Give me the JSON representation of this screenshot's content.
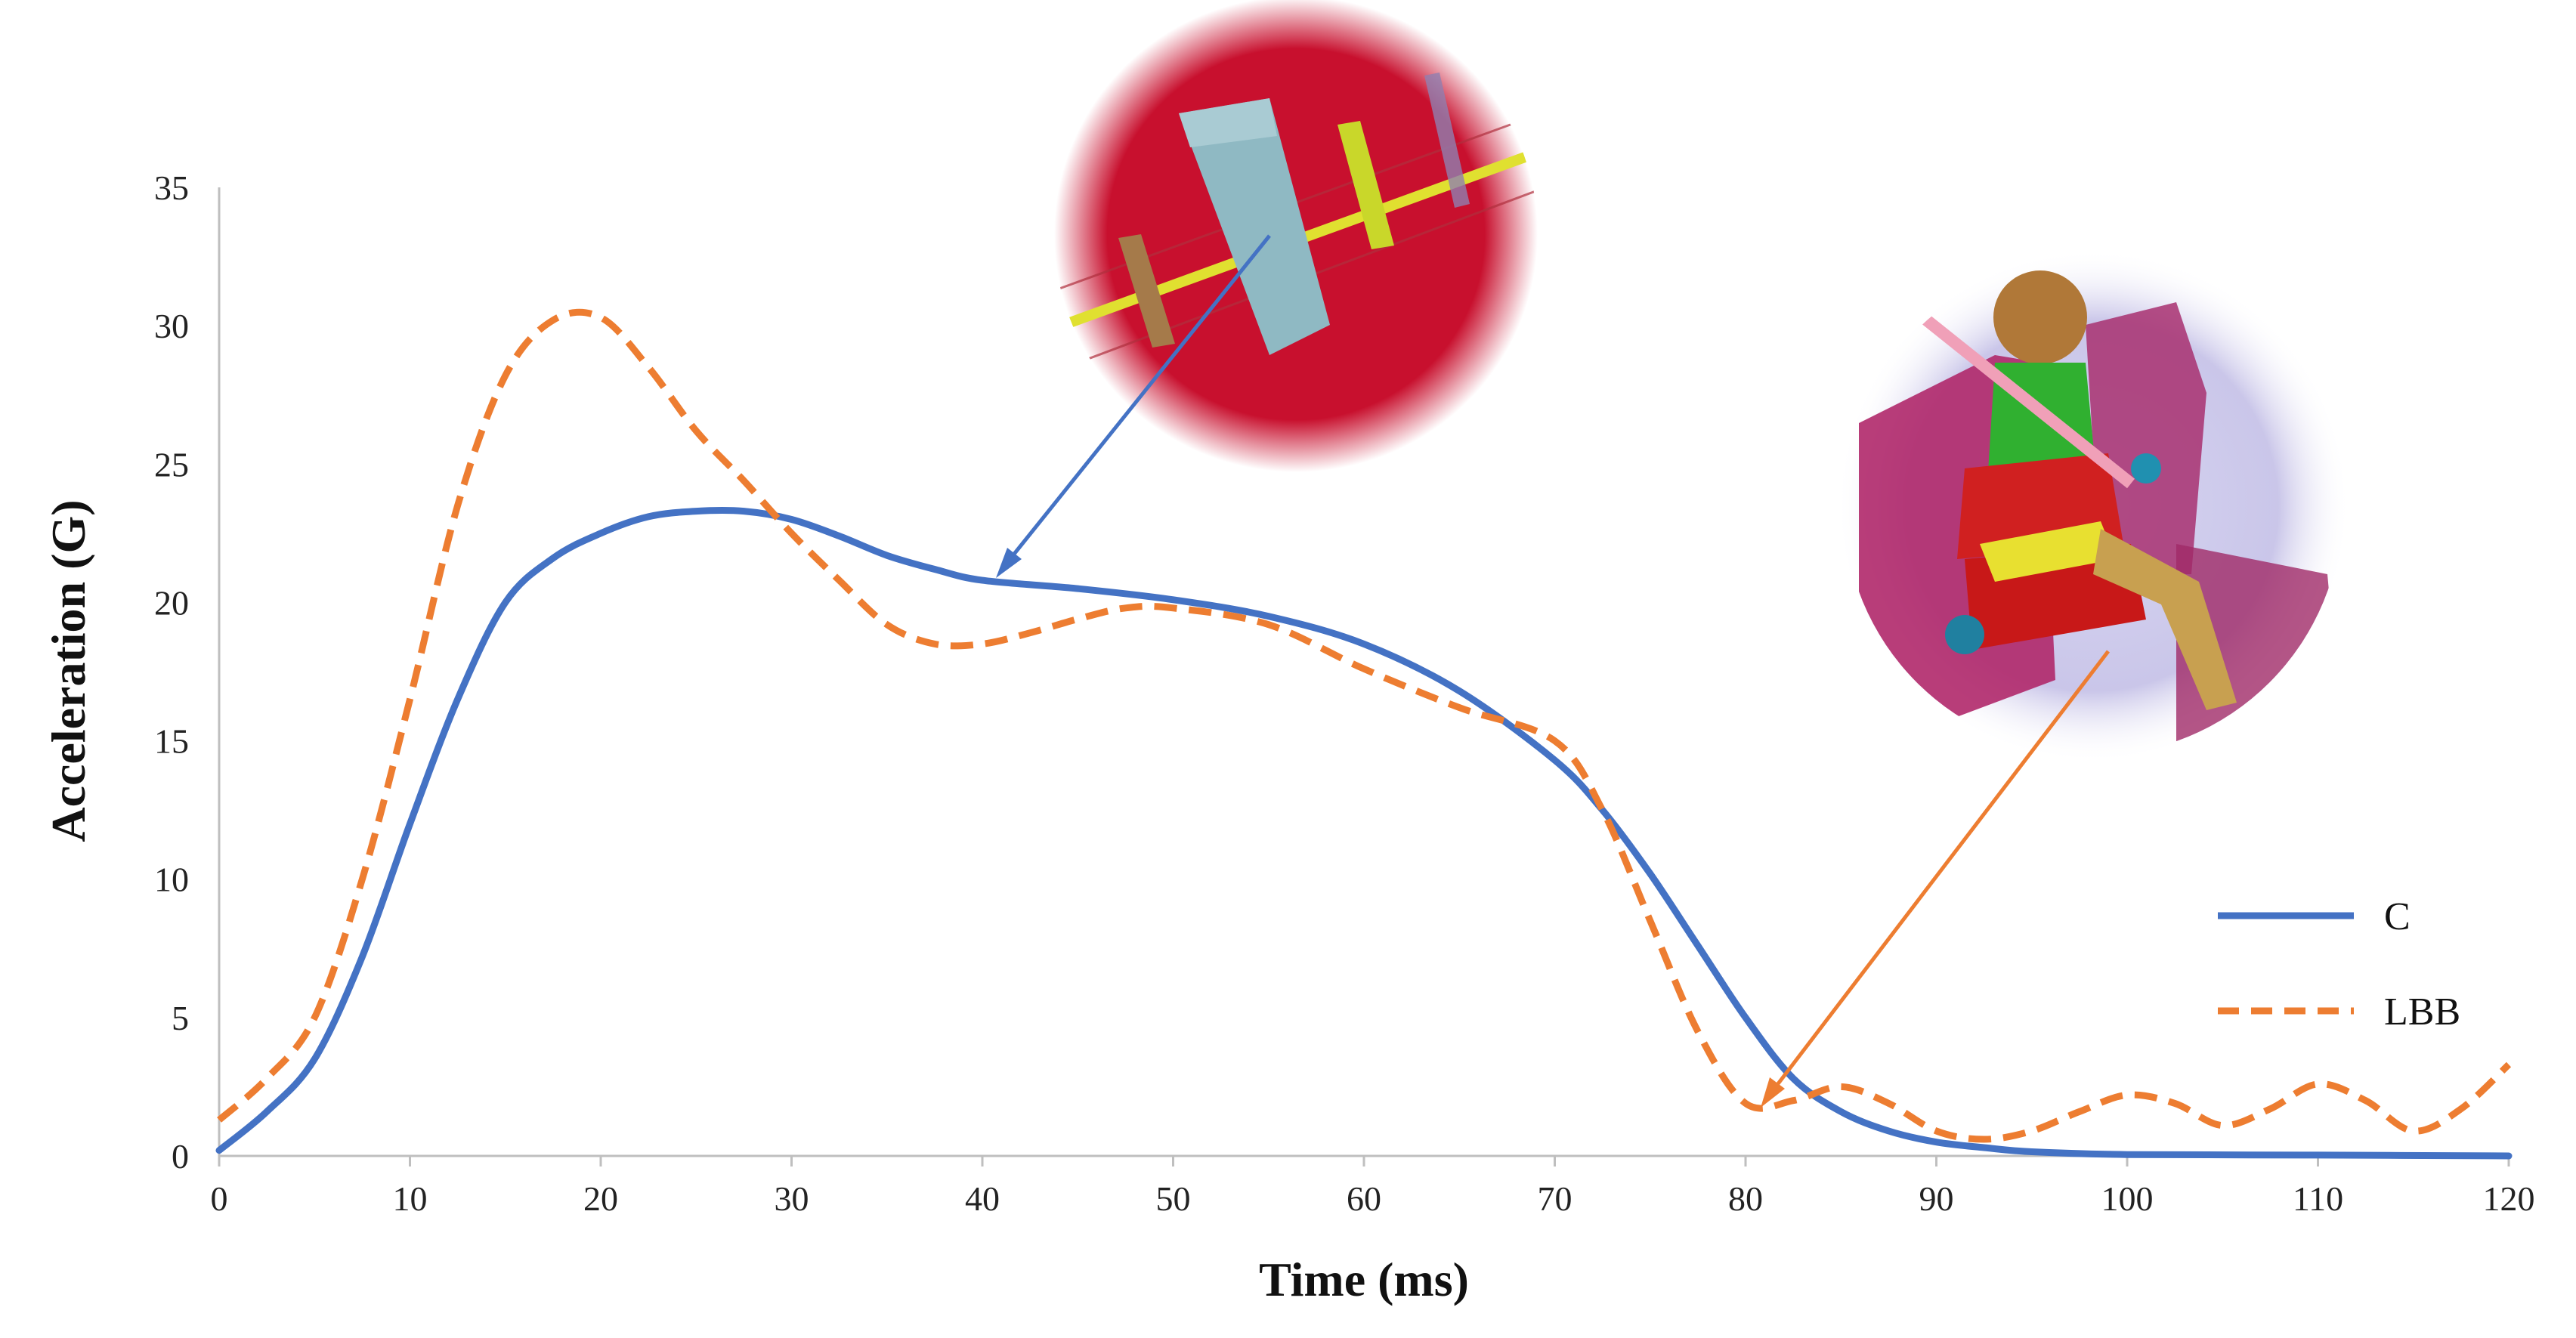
{
  "chart_data": {
    "type": "line",
    "title": "",
    "xlabel": "Time (ms)",
    "ylabel": "Acceleration (G)",
    "xlim": [
      0,
      120
    ],
    "ylim": [
      0,
      35
    ],
    "x_ticks": [
      0,
      10,
      20,
      30,
      40,
      50,
      60,
      70,
      80,
      90,
      100,
      110,
      120
    ],
    "y_ticks": [
      0,
      5,
      10,
      15,
      20,
      25,
      30,
      35
    ],
    "grid": false,
    "legend_position": "right",
    "series": [
      {
        "name": "C",
        "color": "#4472C4",
        "style": "solid",
        "points": [
          [
            0,
            0.2
          ],
          [
            2.5,
            1.6
          ],
          [
            5,
            3.5
          ],
          [
            7.5,
            7.2
          ],
          [
            10,
            12.0
          ],
          [
            12.5,
            16.5
          ],
          [
            15,
            20.0
          ],
          [
            17.5,
            21.6
          ],
          [
            20,
            22.5
          ],
          [
            22.5,
            23.1
          ],
          [
            25,
            23.3
          ],
          [
            27.5,
            23.3
          ],
          [
            30,
            23.0
          ],
          [
            32.5,
            22.4
          ],
          [
            35,
            21.7
          ],
          [
            37.5,
            21.2
          ],
          [
            40,
            20.8
          ],
          [
            45,
            20.5
          ],
          [
            50,
            20.1
          ],
          [
            55,
            19.5
          ],
          [
            60,
            18.5
          ],
          [
            65,
            16.8
          ],
          [
            70,
            14.3
          ],
          [
            72.5,
            12.5
          ],
          [
            75,
            10.2
          ],
          [
            77.5,
            7.6
          ],
          [
            80,
            5.0
          ],
          [
            82.5,
            2.8
          ],
          [
            85,
            1.6
          ],
          [
            87.5,
            0.9
          ],
          [
            90,
            0.5
          ],
          [
            92.5,
            0.3
          ],
          [
            95,
            0.15
          ],
          [
            100,
            0.05
          ],
          [
            110,
            0.03
          ],
          [
            120,
            0.0
          ]
        ]
      },
      {
        "name": "LBB",
        "color": "#ED7D31",
        "style": "dashed",
        "points": [
          [
            0,
            1.3
          ],
          [
            2.5,
            2.8
          ],
          [
            5,
            5.0
          ],
          [
            7.5,
            10.0
          ],
          [
            10,
            16.5
          ],
          [
            12.5,
            23.5
          ],
          [
            15,
            28.2
          ],
          [
            17.5,
            30.2
          ],
          [
            20,
            30.3
          ],
          [
            22.5,
            28.5
          ],
          [
            25,
            26.2
          ],
          [
            27.5,
            24.4
          ],
          [
            30,
            22.5
          ],
          [
            32.5,
            20.8
          ],
          [
            35,
            19.2
          ],
          [
            37.5,
            18.5
          ],
          [
            40,
            18.5
          ],
          [
            42.5,
            18.9
          ],
          [
            45,
            19.4
          ],
          [
            47.5,
            19.8
          ],
          [
            50,
            19.8
          ],
          [
            55,
            19.2
          ],
          [
            60,
            17.6
          ],
          [
            65,
            16.2
          ],
          [
            70,
            15.0
          ],
          [
            72.5,
            12.5
          ],
          [
            75,
            8.5
          ],
          [
            77.5,
            4.5
          ],
          [
            80,
            1.9
          ],
          [
            82.5,
            2.0
          ],
          [
            85,
            2.5
          ],
          [
            87.5,
            1.9
          ],
          [
            90,
            0.9
          ],
          [
            92.5,
            0.6
          ],
          [
            95,
            0.9
          ],
          [
            97.5,
            1.6
          ],
          [
            100,
            2.2
          ],
          [
            102.5,
            1.9
          ],
          [
            105,
            1.1
          ],
          [
            107.5,
            1.7
          ],
          [
            110,
            2.6
          ],
          [
            112.5,
            2.0
          ],
          [
            115,
            0.9
          ],
          [
            117.5,
            1.7
          ],
          [
            120,
            3.3
          ]
        ]
      }
    ]
  }
}
